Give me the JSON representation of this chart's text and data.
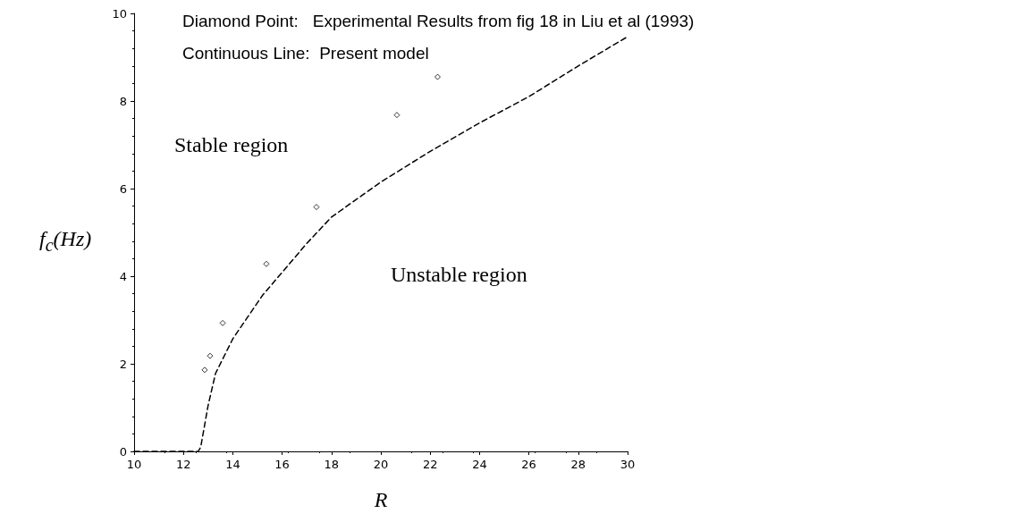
{
  "chart_data": {
    "type": "scatter",
    "xlabel": "R",
    "ylabel": "f$_{c}$(Hz)",
    "xlim": [
      10,
      30
    ],
    "xticks": [
      10,
      12,
      14,
      16,
      18,
      20,
      22,
      24,
      26,
      28,
      30
    ],
    "ylim": [
      0,
      10
    ],
    "yticks": [
      0,
      2,
      4,
      6,
      8,
      10
    ],
    "grid": false,
    "series": [
      {
        "color": "#000000",
        "marker": "diamond",
        "x": [
          12.86,
          13.08,
          13.59,
          15.36,
          17.39,
          20.65,
          22.3
        ],
        "values": [
          1.86,
          2.18,
          2.93,
          4.28,
          5.58,
          7.68,
          8.55
        ]
      },
      {
        "type": "line",
        "color": "#000000",
        "line_style": "dashed",
        "marker": "none",
        "x": [
          10,
          12.6,
          12.7,
          13.0,
          13.3,
          14.0,
          15.2,
          16.2,
          17.0,
          18.0,
          20.0,
          22.0,
          24.0,
          26.0,
          28.0,
          30.0
        ],
        "values": [
          0,
          0,
          0.1,
          1.05,
          1.78,
          2.57,
          3.56,
          4.22,
          4.75,
          5.35,
          6.15,
          6.85,
          7.5,
          8.1,
          8.8,
          9.47
        ]
      }
    ],
    "annotations": [
      "Diamond Point:   Experimental Results from fig 18 in Liu et al (1993)",
      "Continuous Line:  Present model",
      "Stable region",
      "Unstable region"
    ]
  }
}
